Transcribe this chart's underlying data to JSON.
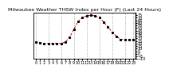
{
  "title": "Milwaukee Weather THSW Index per Hour (F) (Last 24 Hours)",
  "x": [
    0,
    1,
    2,
    3,
    4,
    5,
    6,
    7,
    8,
    9,
    10,
    11,
    12,
    13,
    14,
    15,
    16,
    17,
    18,
    19,
    20,
    21,
    22,
    23
  ],
  "y": [
    22,
    21,
    20,
    20,
    20,
    20,
    20,
    23,
    32,
    48,
    63,
    70,
    74,
    75,
    74,
    70,
    62,
    52,
    42,
    34,
    28,
    28,
    28,
    28
  ],
  "line_color": "#cc0000",
  "marker_color": "#000000",
  "bg_color": "#ffffff",
  "ylim_min": -10,
  "ylim_max": 80,
  "title_fontsize": 4.5,
  "tick_fontsize": 3.5,
  "grid_color": "#999999",
  "yticks_right": [
    75,
    70,
    65,
    60,
    55,
    50,
    45,
    40,
    35,
    30,
    25,
    20,
    15,
    10,
    5,
    0,
    -5,
    -10
  ],
  "xtick_positions": [
    0,
    1,
    2,
    3,
    4,
    5,
    6,
    7,
    8,
    9,
    10,
    11,
    12,
    13,
    14,
    15,
    16,
    17,
    18,
    19,
    20,
    21,
    22,
    23
  ],
  "vgrid_positions": [
    0,
    3,
    6,
    9,
    12,
    15,
    18,
    21,
    23
  ]
}
